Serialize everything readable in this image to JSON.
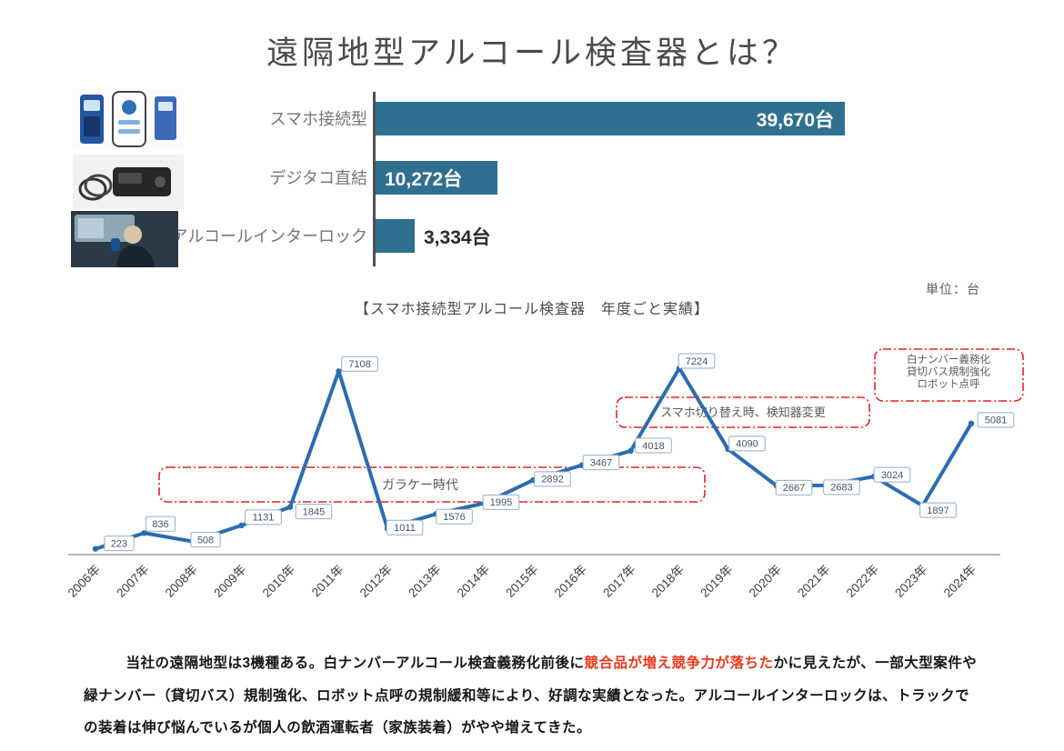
{
  "page": {
    "title": "遠隔地型アルコール検査器とは？"
  },
  "colors": {
    "bar": "#2f6f8f",
    "line": "#2a6cb0",
    "annotation_red": "#e02424",
    "text_red": "#e8381d",
    "label_box_border": "#92aec8",
    "label_box_text": "#44546a"
  },
  "photos": [
    "alcohol-checker-and-smartphone",
    "digital-tacho-device",
    "driver-in-truck-cab"
  ],
  "chart_data": [
    {
      "type": "bar",
      "orientation": "horizontal",
      "categories": [
        "スマホ接続型",
        "デジタコ直結",
        "アルコールインターロック"
      ],
      "values": [
        39670,
        10272,
        3334
      ],
      "value_labels": [
        "39,670台",
        "10,272台",
        "3,334台"
      ],
      "xlim": [
        0,
        40000
      ],
      "unit": "台"
    },
    {
      "type": "line",
      "title": "【スマホ接続型アルコール検査器　年度ごと実績】",
      "unit_note": "単位：台",
      "categories": [
        "2006年",
        "2007年",
        "2008年",
        "2009年",
        "2010年",
        "2011年",
        "2012年",
        "2013年",
        "2014年",
        "2015年",
        "2016年",
        "2017年",
        "2018年",
        "2019年",
        "2020年",
        "2021年",
        "2022年",
        "2023年",
        "2024年"
      ],
      "values": [
        223,
        836,
        508,
        1131,
        1845,
        7108,
        1011,
        1576,
        1995,
        2892,
        3467,
        4018,
        7224,
        4090,
        2667,
        2683,
        3024,
        1897,
        5081
      ],
      "ylim": [
        0,
        7600
      ],
      "grid": false,
      "annotations": [
        {
          "lines": [
            "ガラケー時代"
          ]
        },
        {
          "lines": [
            "スマホ切り替え時、検知器変更"
          ]
        },
        {
          "lines": [
            "白ナンバー義務化",
            "貸切バス規制強化",
            "ロボット点呼"
          ]
        }
      ]
    }
  ],
  "footer": {
    "text_before_red": "当社の遠隔地型は3機種ある。白ナンバーアルコール検査義務化前後に",
    "text_red": "競合品が増え競争力が落ちた",
    "text_after_red": "かに見えたが、一部大型案件や緑ナンバー（貸切バス）規制強化、ロボット点呼の規制緩和等により、好調な実績となった。アルコールインターロックは、トラックでの装着は伸び悩んでいるが個人の飲酒運転者（家族装着）がやや増えてきた。"
  }
}
